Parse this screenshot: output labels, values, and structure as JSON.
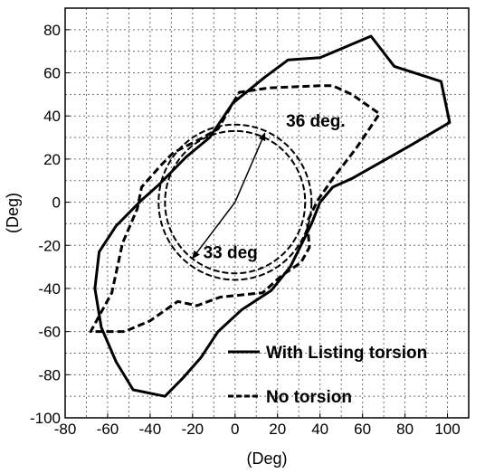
{
  "chart_data": {
    "type": "line",
    "title": "",
    "xlabel": "(Deg)",
    "ylabel": "(Deg)",
    "xlim": [
      -80,
      110
    ],
    "ylim": [
      -100,
      90
    ],
    "xticks": [
      "-80",
      "-60",
      "-40",
      "-20",
      "0",
      "20",
      "40",
      "60",
      "80",
      "100"
    ],
    "yticks": [
      "80",
      "60",
      "40",
      "20",
      "0",
      "-20",
      "-40",
      "-60",
      "-80",
      "-100"
    ],
    "xtick_values": [
      -80,
      -60,
      -40,
      -20,
      0,
      20,
      40,
      60,
      80,
      100
    ],
    "ytick_values": [
      80,
      60,
      40,
      20,
      0,
      -20,
      -40,
      -60,
      -80,
      -100
    ],
    "grid": true,
    "legend_placement": "bottom-right",
    "series": [
      {
        "name": "With Listing torsion",
        "style": "solid",
        "color": "#000000",
        "points": [
          [
            -1,
            46
          ],
          [
            14,
            58
          ],
          [
            25,
            66
          ],
          [
            40,
            67
          ],
          [
            64,
            77
          ],
          [
            75,
            63
          ],
          [
            97,
            56
          ],
          [
            101,
            37
          ],
          [
            82,
            26
          ],
          [
            55,
            11
          ],
          [
            46,
            7
          ],
          [
            40,
            0
          ],
          [
            36,
            -10
          ],
          [
            31,
            -20
          ],
          [
            26,
            -30
          ],
          [
            17,
            -41
          ],
          [
            3,
            -50
          ],
          [
            -8,
            -60
          ],
          [
            -16,
            -72
          ],
          [
            -25,
            -82
          ],
          [
            -33,
            -90
          ],
          [
            -48,
            -87
          ],
          [
            -56,
            -74
          ],
          [
            -63,
            -58
          ],
          [
            -66,
            -40
          ],
          [
            -64,
            -23
          ],
          [
            -56,
            -11
          ],
          [
            -44,
            1
          ],
          [
            -36,
            8
          ],
          [
            -23,
            21
          ],
          [
            -12,
            30
          ],
          [
            -1,
            46
          ]
        ]
      },
      {
        "name": "No torsion",
        "style": "dashed",
        "color": "#000000",
        "points": [
          [
            -1,
            46
          ],
          [
            2,
            51
          ],
          [
            16,
            53
          ],
          [
            40,
            54
          ],
          [
            46,
            54
          ],
          [
            55,
            50
          ],
          [
            68,
            41
          ],
          [
            57,
            25
          ],
          [
            46,
            11
          ],
          [
            39,
            1
          ],
          [
            34,
            -9
          ],
          [
            35,
            -21
          ],
          [
            31,
            -28
          ],
          [
            22,
            -34
          ],
          [
            13,
            -42
          ],
          [
            -7,
            -44
          ],
          [
            -18,
            -48
          ],
          [
            -27,
            -46
          ],
          [
            -40,
            -55
          ],
          [
            -52,
            -60
          ],
          [
            -68,
            -60
          ],
          [
            -58,
            -42
          ],
          [
            -53,
            -19
          ],
          [
            -46,
            -3
          ],
          [
            -44,
            7
          ],
          [
            -35,
            17
          ],
          [
            -29,
            23
          ],
          [
            -17,
            29
          ],
          [
            -8,
            34
          ],
          [
            -1,
            46
          ]
        ]
      }
    ],
    "circles": [
      {
        "cx": 0,
        "cy": 0,
        "r": 36,
        "style": "dashed"
      },
      {
        "cx": 0,
        "cy": 0,
        "r": 33,
        "style": "dashed"
      }
    ],
    "arrows": [
      {
        "from": [
          0,
          0
        ],
        "to": [
          14,
          32
        ]
      },
      {
        "from": [
          0,
          0
        ],
        "to": [
          -20,
          -26
        ]
      }
    ],
    "annotations": [
      {
        "text": "36 deg.",
        "x": 24,
        "y": 38
      },
      {
        "text": "33 deg",
        "x": -15,
        "y": -23
      }
    ],
    "legend": [
      {
        "label": "With Listing torsion",
        "style": "solid"
      },
      {
        "label": "No torsion",
        "style": "dashed"
      }
    ]
  }
}
